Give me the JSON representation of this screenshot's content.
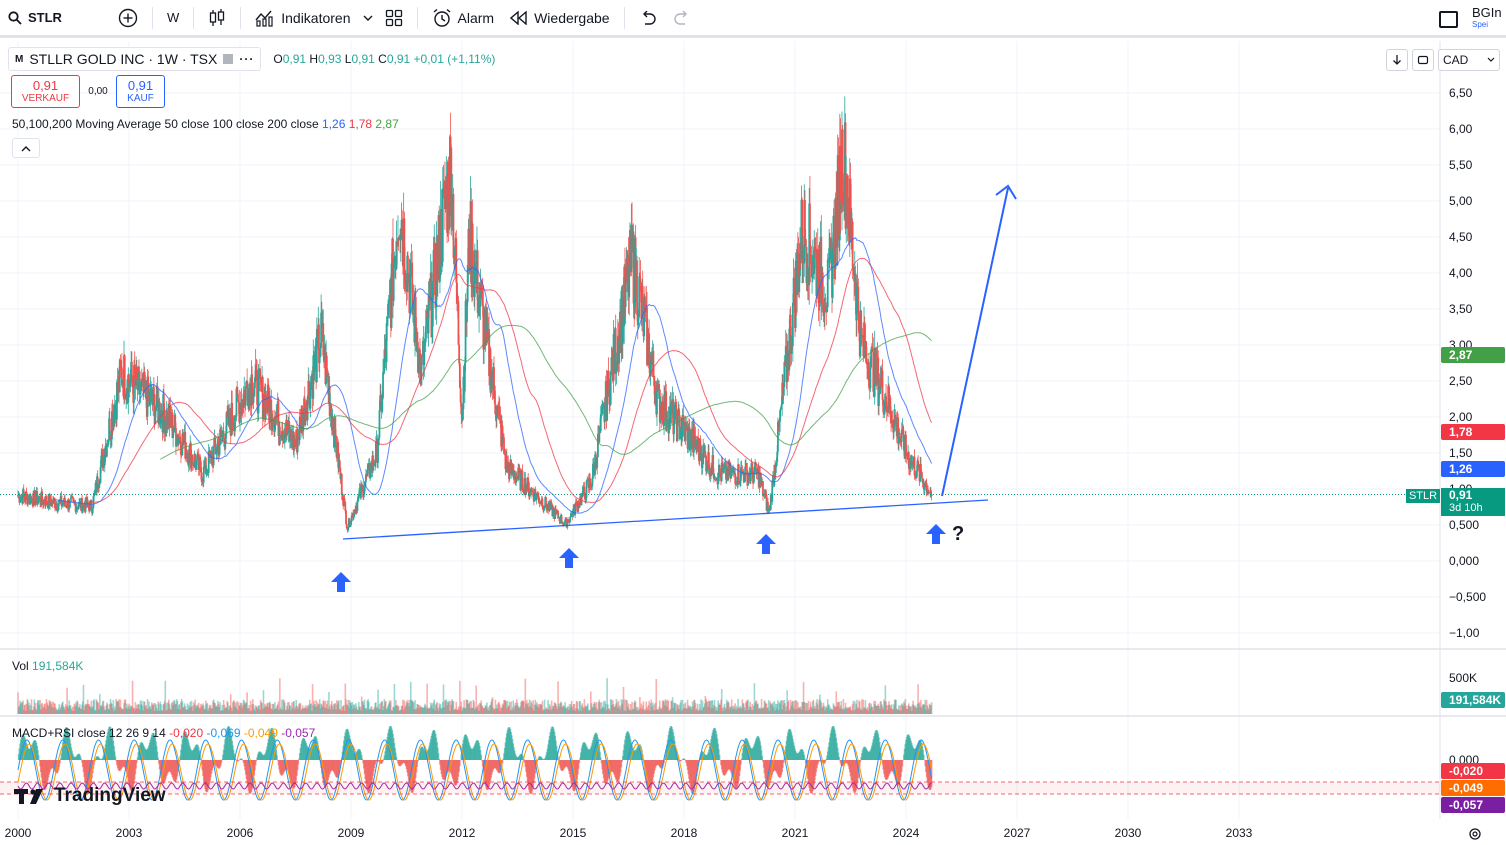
{
  "toolbar": {
    "symbol": "STLR",
    "interval": "W",
    "indicators_label": "Indikatoren",
    "alert_label": "Alarm",
    "replay_label": "Wiedergabe",
    "account_name": "BGIn",
    "account_sub": "Spei"
  },
  "legend": {
    "badge": "M",
    "title": "STLLR GOLD INC · 1W · TSX",
    "ohlc": {
      "o_key": "O",
      "o": "0,91",
      "h_key": "H",
      "h": "0,93",
      "l_key": "L",
      "l": "0,91",
      "c_key": "C",
      "c": "0,91",
      "change": "+0,01 (+1,11%)"
    }
  },
  "trade": {
    "sell_price": "0,91",
    "sell_label": "VERKAUF",
    "spread": "0,00",
    "buy_price": "0,91",
    "buy_label": "KAUF"
  },
  "ma_legend": {
    "name": "50,100,200 Moving Average 50 close 100 close 200 close",
    "v1": "1,26",
    "v2": "1,78",
    "v3": "2,87"
  },
  "volume_legend": {
    "name": "Vol",
    "value": "191,584K"
  },
  "macd_legend": {
    "name": "MACD+RSI close 12 26 9 14",
    "a": "-0,020",
    "b": "-0,069",
    "c": "-0,049",
    "d": "-0,057"
  },
  "price_scale": {
    "currency": "CAD",
    "ticks": [
      "6,50",
      "6,00",
      "5,50",
      "5,00",
      "4,50",
      "4,00",
      "3,50",
      "3,00",
      "2,50",
      "2,00",
      "1,50",
      "1,00",
      "0,500",
      "0,000",
      "−0,500",
      "−1,00"
    ],
    "ma200_label": "2,87",
    "ma100_label": "1,78",
    "ma50_label": "1,26",
    "last_price": "0,91",
    "countdown": "3d 10h",
    "symbol_tag": "STLR",
    "vol_tick": "500K",
    "vol_label": "191,584K",
    "macd_tick": "0,000",
    "macd_labels": [
      "-0,020",
      "-0,049",
      "-0,057"
    ]
  },
  "colors": {
    "up": "#26a69a",
    "down": "#ef5350",
    "ma50": "#2962ff",
    "ma100": "#f23645",
    "ma200": "#43a047",
    "drawing": "#2962ff"
  },
  "time_axis": [
    "2000",
    "2003",
    "2006",
    "2009",
    "2012",
    "2015",
    "2018",
    "2021",
    "2024",
    "2027",
    "2030",
    "2033"
  ],
  "annotation": {
    "question_mark": "?"
  },
  "logo_text": "TradingView",
  "chart_data": {
    "type": "candlestick",
    "symbol": "STLR",
    "interval": "1W",
    "ylim": [
      -1.0,
      6.5
    ],
    "close_approx": [
      {
        "x": 2000.0,
        "y": 0.9
      },
      {
        "x": 2001.0,
        "y": 0.8
      },
      {
        "x": 2002.0,
        "y": 0.75
      },
      {
        "x": 2002.8,
        "y": 2.6
      },
      {
        "x": 2004.0,
        "y": 2.0
      },
      {
        "x": 2005.0,
        "y": 1.2
      },
      {
        "x": 2006.3,
        "y": 2.5
      },
      {
        "x": 2007.5,
        "y": 1.6
      },
      {
        "x": 2008.2,
        "y": 3.1
      },
      {
        "x": 2008.9,
        "y": 0.45
      },
      {
        "x": 2009.7,
        "y": 1.5
      },
      {
        "x": 2010.3,
        "y": 5.0
      },
      {
        "x": 2010.9,
        "y": 2.6
      },
      {
        "x": 2011.7,
        "y": 5.5
      },
      {
        "x": 2012.0,
        "y": 2.0
      },
      {
        "x": 2012.2,
        "y": 4.5
      },
      {
        "x": 2013.2,
        "y": 1.3
      },
      {
        "x": 2014.0,
        "y": 0.9
      },
      {
        "x": 2014.8,
        "y": 0.5
      },
      {
        "x": 2015.5,
        "y": 1.1
      },
      {
        "x": 2016.6,
        "y": 4.2
      },
      {
        "x": 2017.3,
        "y": 2.2
      },
      {
        "x": 2018.0,
        "y": 1.8
      },
      {
        "x": 2018.9,
        "y": 1.2
      },
      {
        "x": 2020.0,
        "y": 1.2
      },
      {
        "x": 2020.3,
        "y": 0.65
      },
      {
        "x": 2020.7,
        "y": 2.4
      },
      {
        "x": 2021.2,
        "y": 4.6
      },
      {
        "x": 2021.9,
        "y": 3.7
      },
      {
        "x": 2022.3,
        "y": 5.7
      },
      {
        "x": 2022.8,
        "y": 3.0
      },
      {
        "x": 2023.5,
        "y": 2.2
      },
      {
        "x": 2024.0,
        "y": 1.5
      },
      {
        "x": 2024.7,
        "y": 0.91
      }
    ]
  }
}
